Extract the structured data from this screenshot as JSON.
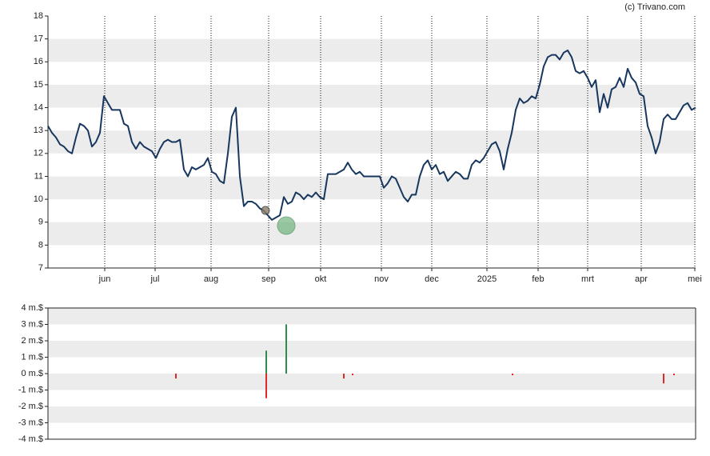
{
  "credit": "(c) Trivano.com",
  "chart_data": [
    {
      "type": "line",
      "color": "#17375e",
      "xlim": [
        0,
        162
      ],
      "ylim": [
        7,
        18
      ],
      "yticks": [
        7,
        8,
        9,
        10,
        11,
        12,
        13,
        14,
        15,
        16,
        17,
        18
      ],
      "xticks": [
        {
          "value": 14.2,
          "label": "jun"
        },
        {
          "value": 26.8,
          "label": "jul"
        },
        {
          "value": 40.8,
          "label": "aug"
        },
        {
          "value": 55.2,
          "label": "sep"
        },
        {
          "value": 68.2,
          "label": "okt"
        },
        {
          "value": 83.4,
          "label": "nov"
        },
        {
          "value": 96,
          "label": "dec"
        },
        {
          "value": 109.8,
          "label": "2025"
        },
        {
          "value": 122.6,
          "label": "feb"
        },
        {
          "value": 135,
          "label": "mrt"
        },
        {
          "value": 148.4,
          "label": "apr"
        },
        {
          "value": 161.8,
          "label": "mei"
        }
      ],
      "grid": true,
      "values": [
        13.2,
        12.9,
        12.7,
        12.4,
        12.3,
        12.1,
        12.0,
        12.7,
        13.3,
        13.2,
        13.0,
        12.3,
        12.5,
        12.9,
        14.5,
        14.2,
        13.9,
        13.9,
        13.9,
        13.3,
        13.2,
        12.5,
        12.2,
        12.5,
        12.3,
        12.2,
        12.1,
        11.8,
        12.2,
        12.5,
        12.6,
        12.5,
        12.5,
        12.6,
        11.3,
        11.0,
        11.4,
        11.3,
        11.4,
        11.5,
        11.8,
        11.2,
        11.1,
        10.8,
        10.7,
        12.0,
        13.6,
        14.0,
        11.0,
        9.7,
        9.9,
        9.9,
        9.8,
        9.6,
        9.5,
        9.3,
        9.1,
        9.2,
        9.3,
        10.1,
        9.8,
        9.9,
        10.3,
        10.2,
        10.0,
        10.2,
        10.1,
        10.3,
        10.1,
        10.0,
        11.1,
        11.1,
        11.1,
        11.2,
        11.3,
        11.6,
        11.3,
        11.1,
        11.2,
        11.0,
        11.0,
        11.0,
        11.0,
        11.0,
        10.5,
        10.7,
        11.0,
        10.9,
        10.5,
        10.1,
        9.9,
        10.2,
        10.2,
        11.0,
        11.5,
        11.7,
        11.3,
        11.5,
        11.1,
        11.2,
        10.8,
        11.0,
        11.2,
        11.1,
        10.9,
        10.9,
        11.5,
        11.7,
        11.6,
        11.8,
        12.1,
        12.4,
        12.5,
        12.1,
        11.3,
        12.2,
        12.9,
        13.9,
        14.4,
        14.2,
        14.3,
        14.5,
        14.4,
        15.0,
        15.8,
        16.2,
        16.3,
        16.3,
        16.1,
        16.4,
        16.5,
        16.2,
        15.6,
        15.5,
        15.6,
        15.3,
        14.9,
        15.2,
        13.8,
        14.6,
        14.0,
        14.8,
        14.9,
        15.3,
        14.9,
        15.7,
        15.3,
        15.1,
        14.6,
        14.5,
        13.2,
        12.7,
        12.0,
        12.5,
        13.5,
        13.7,
        13.5,
        13.5,
        13.8,
        14.1,
        14.2,
        13.9,
        14.0
      ]
    },
    {
      "type": "bar",
      "up_color": "#2e8b4a",
      "down_color": "#e02a2a",
      "xlim": [
        0,
        162
      ],
      "ylim": [
        -4,
        4
      ],
      "yticks": [
        {
          "value": -4,
          "label": "-4 m.$"
        },
        {
          "value": -3,
          "label": "-3 m.$"
        },
        {
          "value": -2,
          "label": "-2 m.$"
        },
        {
          "value": -1,
          "label": "-1 m.$"
        },
        {
          "value": 0,
          "label": "0 m.$"
        },
        {
          "value": 1,
          "label": "1 m.$"
        },
        {
          "value": 2,
          "label": "2 m.$"
        },
        {
          "value": 3,
          "label": "3 m.$"
        },
        {
          "value": 4,
          "label": "4 m.$"
        }
      ],
      "x": [
        32,
        54.6,
        54.6,
        59.6,
        74,
        76.2,
        116.2,
        154,
        156.6
      ],
      "values": [
        -0.3,
        1.4,
        -1.5,
        3.0,
        -0.3,
        -0.1,
        -0.1,
        -0.6,
        -0.1
      ]
    }
  ]
}
